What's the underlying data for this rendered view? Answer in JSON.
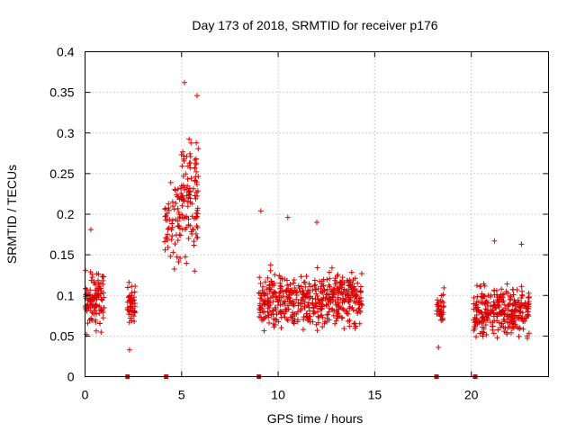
{
  "chart_data": {
    "type": "scatter",
    "title": "Day 173 of 2018, SRMTID for receiver p176",
    "xlabel": "GPS time / hours",
    "ylabel": "SRMTID / TECUs",
    "xlim": [
      0,
      24
    ],
    "ylim": [
      0,
      0.4
    ],
    "x_ticks": [
      0,
      5,
      10,
      15,
      20
    ],
    "x_tick_labels": [
      "0",
      "5",
      "10",
      "15",
      "20"
    ],
    "y_ticks": [
      0,
      0.05,
      0.1,
      0.15,
      0.2,
      0.25,
      0.3,
      0.35,
      0.4
    ],
    "y_tick_labels": [
      "0",
      "0.05",
      "0.1",
      "0.15",
      "0.2",
      "0.25",
      "0.3",
      "0.35",
      "0.4"
    ],
    "grid": true,
    "marker": "plus",
    "color": "#dd0000",
    "zero_markers_x": [
      2.2,
      4.2,
      9.0,
      18.2,
      20.2
    ],
    "clusters": [
      {
        "x_range": [
          0.0,
          1.0
        ],
        "y_center": 0.095,
        "y_spread": 0.03,
        "count": 110,
        "seed": 11
      },
      {
        "x_range": [
          2.2,
          2.6
        ],
        "y_center": 0.09,
        "y_spread": 0.022,
        "count": 45,
        "seed": 12
      },
      {
        "x_range": [
          4.1,
          4.9
        ],
        "y_center": 0.19,
        "y_spread": 0.045,
        "count": 55,
        "seed": 13
      },
      {
        "x_range": [
          4.9,
          5.9
        ],
        "y_center": 0.22,
        "y_spread": 0.065,
        "count": 110,
        "seed": 14
      },
      {
        "x_range": [
          9.0,
          14.4
        ],
        "y_center": 0.095,
        "y_spread": 0.03,
        "count": 520,
        "seed": 15
      },
      {
        "x_range": [
          18.2,
          18.6
        ],
        "y_center": 0.085,
        "y_spread": 0.02,
        "count": 40,
        "seed": 16
      },
      {
        "x_range": [
          20.1,
          23.0
        ],
        "y_center": 0.08,
        "y_spread": 0.027,
        "count": 300,
        "seed": 17
      }
    ],
    "notable_points": [
      {
        "x": 0.3,
        "y": 0.181
      },
      {
        "x": 5.15,
        "y": 0.362
      },
      {
        "x": 5.8,
        "y": 0.346
      },
      {
        "x": 9.1,
        "y": 0.204
      },
      {
        "x": 10.5,
        "y": 0.196
      },
      {
        "x": 12.0,
        "y": 0.19
      },
      {
        "x": 21.2,
        "y": 0.167
      },
      {
        "x": 22.6,
        "y": 0.163
      },
      {
        "x": 2.3,
        "y": 0.033
      },
      {
        "x": 18.3,
        "y": 0.036
      }
    ]
  }
}
